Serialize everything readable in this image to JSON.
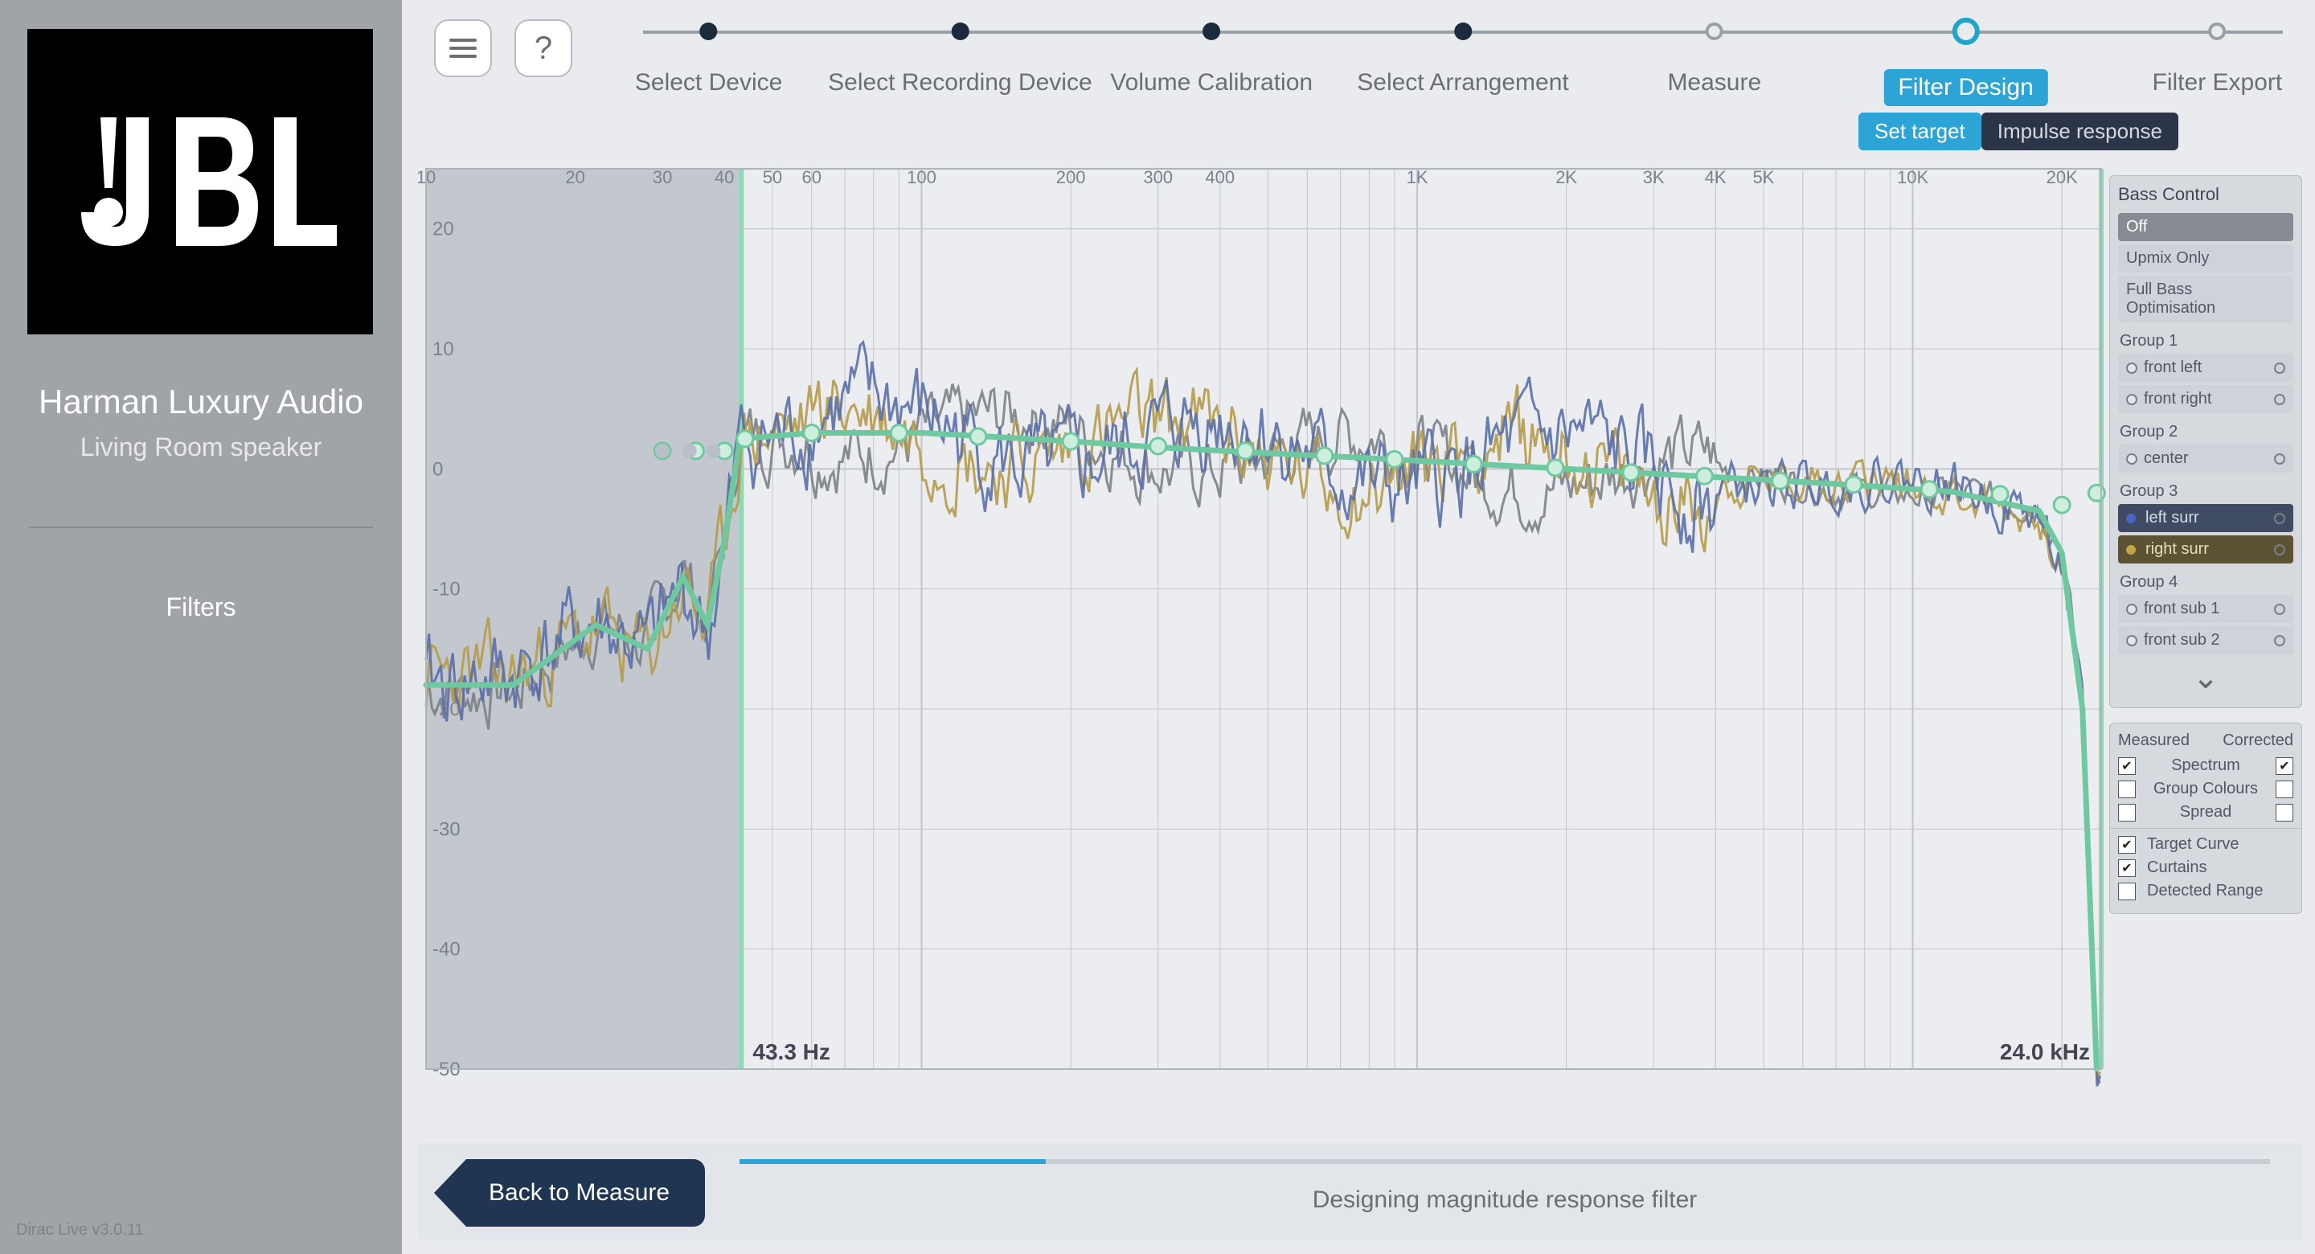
{
  "brand": {
    "title": "Harman Luxury Audio",
    "subtitle": "Living Room speaker"
  },
  "sidebar": {
    "filters_label": "Filters",
    "version": "Dirac Live v3.0.11"
  },
  "topbar": {
    "steps": [
      {
        "label": "Select Device",
        "state": "done"
      },
      {
        "label": "Select Recording Device",
        "state": "done"
      },
      {
        "label": "Volume Calibration",
        "state": "done"
      },
      {
        "label": "Select Arrangement",
        "state": "done"
      },
      {
        "label": "Measure",
        "state": "hollow"
      },
      {
        "label": "Filter Design",
        "state": "active"
      },
      {
        "label": "Filter Export",
        "state": "hollow"
      }
    ],
    "sub_tabs": {
      "set_target": "Set target",
      "impulse": "Impulse response"
    }
  },
  "chart": {
    "plot_bg": "#ecedf0",
    "grid_color": "#c2c6cc",
    "axis_text_color": "#7a828c",
    "y_min": -50,
    "y_max": 25,
    "y_step": 10,
    "x_ticks_hz": [
      10,
      20,
      30,
      40,
      50,
      60,
      100,
      200,
      300,
      400,
      1000,
      2000,
      3000,
      4000,
      5000,
      10000,
      20000
    ],
    "x_tick_labels": [
      "10",
      "20",
      "30",
      "40",
      "50",
      "60",
      "100",
      "200",
      "300",
      "400",
      "1K",
      "2K",
      "3K",
      "4K",
      "5K",
      "10K",
      "20K"
    ],
    "x_log_min": 10,
    "x_log_max": 24000,
    "curtain_color": "#b6bbc4",
    "curtain_edge": "#8fd9b5",
    "curtain_low_hz": 43.3,
    "curtain_high_hz": 24000,
    "curtain_low_label": "43.3 Hz",
    "curtain_high_label": "24.0 kHz",
    "target_color": "#6fc9a0",
    "target_width": 7,
    "target_points_hz_db": [
      [
        10,
        -18
      ],
      [
        15,
        -18
      ],
      [
        22,
        -13
      ],
      [
        28,
        -15
      ],
      [
        33,
        -9
      ],
      [
        37,
        -13
      ],
      [
        40,
        -6
      ],
      [
        43,
        2.5
      ],
      [
        60,
        3
      ],
      [
        80,
        3
      ],
      [
        100,
        3
      ],
      [
        150,
        2.6
      ],
      [
        200,
        2.3
      ],
      [
        300,
        1.8
      ],
      [
        500,
        1.3
      ],
      [
        800,
        0.9
      ],
      [
        1200,
        0.5
      ],
      [
        2000,
        0
      ],
      [
        3000,
        -0.4
      ],
      [
        5000,
        -0.9
      ],
      [
        8000,
        -1.4
      ],
      [
        12000,
        -1.9
      ],
      [
        18000,
        -3.5
      ],
      [
        20000,
        -7
      ],
      [
        22000,
        -20
      ],
      [
        23500,
        -50
      ]
    ],
    "target_handles_hz_db": [
      [
        30,
        1.5
      ],
      [
        35,
        1.5
      ],
      [
        40,
        1.5
      ],
      [
        44,
        2.5
      ],
      [
        60,
        3
      ],
      [
        90,
        3
      ],
      [
        130,
        2.7
      ],
      [
        200,
        2.3
      ],
      [
        300,
        1.9
      ],
      [
        450,
        1.5
      ],
      [
        650,
        1.1
      ],
      [
        900,
        0.8
      ],
      [
        1300,
        0.4
      ],
      [
        1900,
        0.1
      ],
      [
        2700,
        -0.3
      ],
      [
        3800,
        -0.6
      ],
      [
        5400,
        -1
      ],
      [
        7600,
        -1.3
      ],
      [
        10800,
        -1.7
      ],
      [
        15000,
        -2.1
      ],
      [
        20000,
        -3
      ],
      [
        23500,
        -2
      ]
    ],
    "series": {
      "left_surr": {
        "color": "#5a6fa8",
        "width": 3
      },
      "right_surr": {
        "color": "#b59b4a",
        "width": 3
      },
      "gray": {
        "color": "#7c8188",
        "width": 3
      }
    },
    "meas_noise_amp": {
      "low": 6,
      "mid": 6,
      "high": 3
    }
  },
  "panel": {
    "bass_title": "Bass Control",
    "bass_options": [
      "Off",
      "Upmix Only",
      "Full Bass Optimisation"
    ],
    "bass_selected": 0,
    "groups": [
      {
        "title": "Group 1",
        "channels": [
          {
            "name": "front left",
            "color": "#7a7f87"
          },
          {
            "name": "front right",
            "color": "#7a7f87"
          }
        ]
      },
      {
        "title": "Group 2",
        "channels": [
          {
            "name": "center",
            "color": "#7a7f87"
          }
        ]
      },
      {
        "title": "Group 3",
        "channels": [
          {
            "name": "left surr",
            "color": "#4a63c9",
            "selected": "blue"
          },
          {
            "name": "right surr",
            "color": "#c2a444",
            "selected": "gold"
          }
        ]
      },
      {
        "title": "Group 4",
        "channels": [
          {
            "name": "front sub 1",
            "color": "#7a7f87"
          },
          {
            "name": "front sub 2",
            "color": "#7a7f87"
          }
        ]
      }
    ],
    "legend": {
      "head_left": "Measured",
      "head_right": "Corrected",
      "rows1": [
        {
          "label": "Spectrum",
          "left": true,
          "right": true
        },
        {
          "label": "Group Colours",
          "left": false,
          "right": false
        },
        {
          "label": "Spread",
          "left": false,
          "right": false
        }
      ],
      "rows2": [
        {
          "label": "Target Curve",
          "checked": true
        },
        {
          "label": "Curtains",
          "checked": true
        },
        {
          "label": "Detected Range",
          "checked": false
        }
      ]
    }
  },
  "bottom": {
    "back_label": "Back to Measure",
    "progress_pct": 20,
    "progress_text": "Designing magnitude response filter"
  }
}
